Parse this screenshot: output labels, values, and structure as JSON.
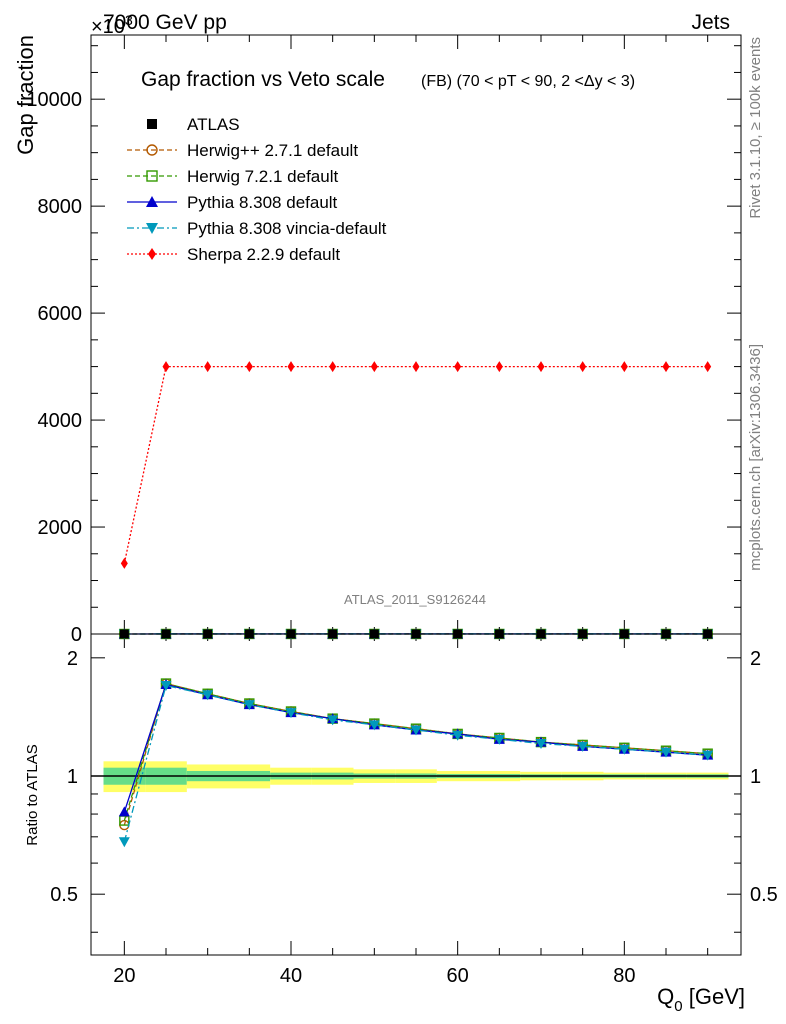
{
  "header": {
    "left": "7000 GeV pp",
    "right": "Jets",
    "exponent": "×10",
    "exponent_power": "3"
  },
  "side": {
    "rivet": "Rivet 3.1.10, ≥ 100k events",
    "mcplots": "mcplots.cern.ch [arXiv:1306.3436]"
  },
  "chart_data": [
    {
      "type": "line",
      "title": "Gap fraction vs Veto scale",
      "subtitle": "(FB) (70 < pT <  90, 2 <Δy < 3)",
      "ylabel": "Gap fraction",
      "watermark": "ATLAS_2011_S9126244",
      "xlim": [
        16,
        94
      ],
      "ylim": [
        0,
        11200
      ],
      "yticks": [
        0,
        2000,
        4000,
        6000,
        8000,
        10000
      ],
      "x": [
        20,
        25,
        30,
        35,
        40,
        45,
        50,
        55,
        60,
        65,
        70,
        75,
        80,
        85,
        90
      ],
      "legend_position": "top-left",
      "series": [
        {
          "name": "ATLAS",
          "color": "#000000",
          "marker": "square",
          "style": "none",
          "values": [
            0.44,
            0.55,
            0.61,
            0.66,
            0.69,
            0.72,
            0.74,
            0.76,
            0.78,
            0.79,
            0.8,
            0.81,
            0.82,
            0.83,
            0.84
          ]
        },
        {
          "name": "Herwig++ 2.7.1 default",
          "color": "#b35900",
          "marker": "circle-open",
          "style": "dashed",
          "values": [
            0.33,
            0.94,
            0.99,
            1.01,
            1.01,
            1.01,
            1.01,
            1.0,
            1.0,
            1.0,
            1.0,
            1.0,
            0.99,
            0.96,
            0.96
          ]
        },
        {
          "name": "Herwig 7.2.1 default",
          "color": "#339900",
          "marker": "square-open",
          "style": "dashed",
          "values": [
            0.34,
            0.94,
            0.99,
            1.01,
            1.01,
            1.01,
            1.01,
            1.0,
            1.0,
            1.0,
            1.0,
            1.0,
            0.99,
            0.96,
            0.96
          ]
        },
        {
          "name": "Pythia 8.308 default",
          "color": "#0000cc",
          "marker": "triangle-up",
          "style": "solid",
          "values": [
            0.36,
            0.93,
            0.98,
            1.0,
            1.0,
            1.0,
            1.0,
            1.0,
            1.0,
            1.0,
            1.0,
            0.99,
            0.98,
            0.96,
            0.95
          ]
        },
        {
          "name": "Pythia 8.308 vincia-default",
          "color": "#0099bb",
          "marker": "triangle-down",
          "style": "dashdot",
          "values": [
            0.3,
            0.93,
            0.98,
            1.0,
            1.0,
            1.0,
            1.0,
            1.0,
            1.0,
            1.0,
            1.0,
            0.99,
            0.98,
            0.96,
            0.95
          ]
        },
        {
          "name": "Sherpa 2.2.9 default",
          "color": "#ff0000",
          "marker": "diamond",
          "style": "dotted",
          "values": [
            1320,
            5000,
            5000,
            5000,
            5000,
            5000,
            5000,
            5000,
            5000,
            5000,
            5000,
            5000,
            5000,
            5000,
            5000
          ]
        }
      ]
    },
    {
      "type": "line",
      "ylabel": "Ratio to ATLAS",
      "xlabel": "Q",
      "xlabel_sub": "0",
      "xlabel_unit": " [GeV]",
      "xlim": [
        16,
        94
      ],
      "ylim": [
        0.35,
        2.3
      ],
      "xticks": [
        20,
        40,
        60,
        80
      ],
      "yticks": [
        0.5,
        1,
        2
      ],
      "band": {
        "x_edges": [
          17.5,
          22.5,
          27.5,
          32.5,
          37.5,
          42.5,
          47.5,
          52.5,
          57.5,
          62.5,
          67.5,
          72.5,
          77.5,
          82.5,
          87.5,
          92.5
        ],
        "inner": [
          0.05,
          0.05,
          0.03,
          0.03,
          0.02,
          0.02,
          0.015,
          0.015,
          0.012,
          0.012,
          0.01,
          0.01,
          0.01,
          0.01,
          0.01
        ],
        "outer": [
          0.09,
          0.09,
          0.07,
          0.07,
          0.05,
          0.05,
          0.04,
          0.04,
          0.03,
          0.03,
          0.025,
          0.025,
          0.02,
          0.02,
          0.02
        ],
        "inner_color": "#66dd88",
        "outer_color": "#ffff66"
      },
      "series": [
        {
          "name": "Herwig++ 2.7.1 default",
          "color": "#b35900",
          "marker": "circle-open",
          "style": "dashed",
          "values": [
            0.75,
            1.72,
            1.62,
            1.53,
            1.46,
            1.4,
            1.36,
            1.32,
            1.28,
            1.25,
            1.22,
            1.2,
            1.18,
            1.16,
            1.14
          ]
        },
        {
          "name": "Herwig 7.2.1 default",
          "color": "#339900",
          "marker": "square-open",
          "style": "dashed",
          "values": [
            0.77,
            1.72,
            1.62,
            1.53,
            1.46,
            1.4,
            1.36,
            1.32,
            1.28,
            1.25,
            1.22,
            1.2,
            1.18,
            1.16,
            1.14
          ]
        },
        {
          "name": "Pythia 8.308 default",
          "color": "#0000cc",
          "marker": "triangle-up",
          "style": "solid",
          "values": [
            0.81,
            1.71,
            1.61,
            1.52,
            1.45,
            1.4,
            1.35,
            1.31,
            1.28,
            1.24,
            1.22,
            1.19,
            1.17,
            1.15,
            1.13
          ]
        },
        {
          "name": "Pythia 8.308 vincia-default",
          "color": "#0099bb",
          "marker": "triangle-down",
          "style": "dashdot",
          "values": [
            0.68,
            1.7,
            1.61,
            1.52,
            1.45,
            1.39,
            1.35,
            1.31,
            1.27,
            1.24,
            1.21,
            1.19,
            1.17,
            1.15,
            1.13
          ]
        }
      ]
    }
  ]
}
